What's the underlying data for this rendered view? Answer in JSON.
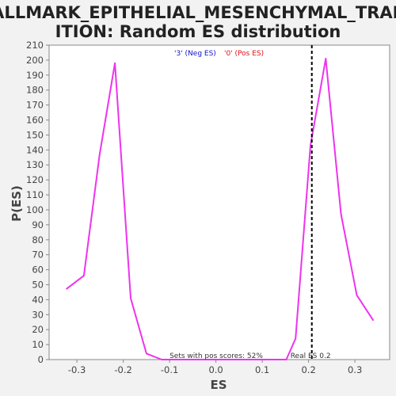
{
  "chart_data": {
    "type": "line",
    "title_line1": "HALLMARK_EPITHELIAL_MESENCHYMAL_TRANS",
    "title_line2": "ITION: Random ES distribution",
    "xlabel": "ES",
    "ylabel": "P(ES)",
    "xlim": [
      -0.36,
      0.375
    ],
    "ylim": [
      0,
      210
    ],
    "xticks": [
      -0.3,
      -0.2,
      -0.1,
      0.0,
      0.1,
      0.2,
      0.3
    ],
    "xtick_labels": [
      "-0.3",
      "-0.2",
      "-0.1",
      "0.0",
      "0.1",
      "0.2",
      "0.3"
    ],
    "yticks": [
      0,
      10,
      20,
      30,
      40,
      50,
      60,
      70,
      80,
      90,
      100,
      110,
      120,
      130,
      140,
      150,
      160,
      170,
      180,
      190,
      200,
      210
    ],
    "grid": false,
    "series": [
      {
        "color": "#ee33ee",
        "x": [
          -0.323,
          -0.285,
          -0.251,
          -0.218,
          -0.184,
          -0.15,
          -0.117,
          -0.083,
          -0.05,
          -0.016,
          0.018,
          0.051,
          0.085,
          0.119,
          0.152,
          0.172,
          0.204,
          0.237,
          0.27,
          0.304,
          0.34
        ],
        "y": [
          47,
          56,
          137,
          198,
          41,
          4,
          0,
          0,
          0,
          0,
          0,
          0,
          0,
          0,
          0,
          14,
          143,
          201,
          97,
          43,
          26
        ]
      }
    ],
    "reference_line": {
      "x": 0.207,
      "label": "Real ES 0.2",
      "color": "#000000"
    },
    "legend": {
      "placement": "top-center",
      "items": [
        {
          "label": "'3' (Neg ES)",
          "color": "#1111cc"
        },
        {
          "label": "'0' (Pos ES)",
          "color": "#dd1111"
        }
      ]
    },
    "annotation": "Sets with pos scores: 52%"
  }
}
